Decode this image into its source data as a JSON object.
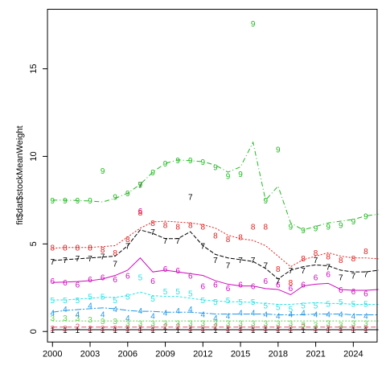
{
  "chart_data": {
    "type": "line",
    "title": "",
    "xlabel": "",
    "ylabel": "fit$dat$stockMeanWeight",
    "xlim": [
      1999.6,
      2025.9
    ],
    "ylim": [
      -0.6,
      18.4
    ],
    "x_ticks": [
      2000,
      2003,
      2006,
      2009,
      2012,
      2015,
      2018,
      2021,
      2024
    ],
    "y_ticks": [
      0,
      5,
      10,
      15
    ],
    "grid": false,
    "legend": "none",
    "x_fit": [
      2000,
      2001,
      2002,
      2003,
      2004,
      2005,
      2006,
      2007,
      2008,
      2009,
      2010,
      2011,
      2012,
      2013,
      2014,
      2015,
      2016,
      2017,
      2018,
      2019,
      2020,
      2021,
      2022,
      2023,
      2024,
      2025,
      2026
    ],
    "x_obs": [
      2000,
      2001,
      2002,
      2003,
      2004,
      2005,
      2006,
      2007,
      2008,
      2009,
      2010,
      2011,
      2012,
      2013,
      2014,
      2015,
      2016,
      2017,
      2018,
      2019,
      2020,
      2021,
      2022,
      2023,
      2024,
      2025
    ],
    "series": [
      {
        "label": "1",
        "color": "#000000",
        "dash": "",
        "fitted": [
          0.1,
          0.1,
          0.1,
          0.1,
          0.1,
          0.1,
          0.1,
          0.1,
          0.1,
          0.1,
          0.1,
          0.1,
          0.1,
          0.1,
          0.1,
          0.1,
          0.1,
          0.1,
          0.1,
          0.1,
          0.1,
          0.1,
          0.1,
          0.1,
          0.1,
          0.1,
          0.1
        ],
        "observed": [
          0.1,
          0.1,
          0.1,
          0.1,
          0.1,
          0.1,
          0.1,
          0.1,
          0.1,
          0.1,
          0.1,
          0.1,
          0.1,
          0.1,
          0.1,
          0.1,
          0.1,
          0.1,
          0.1,
          0.1,
          0.1,
          0.1,
          0.1,
          0.1,
          0.1,
          0.1
        ]
      },
      {
        "label": "2",
        "color": "#DF536B",
        "dash": "6,3",
        "fitted": [
          0.25,
          0.25,
          0.25,
          0.25,
          0.25,
          0.25,
          0.25,
          0.25,
          0.25,
          0.25,
          0.25,
          0.25,
          0.25,
          0.25,
          0.25,
          0.25,
          0.25,
          0.25,
          0.25,
          0.25,
          0.25,
          0.25,
          0.25,
          0.25,
          0.25,
          0.25,
          0.25
        ],
        "observed": [
          0.2,
          0.2,
          0.3,
          0.2,
          0.2,
          0.2,
          0.2,
          0.2,
          0.2,
          0.3,
          0.3,
          0.2,
          0.2,
          0.3,
          0.2,
          0.2,
          0.2,
          0.2,
          0.2,
          0.2,
          0.3,
          0.2,
          0.2,
          0.2,
          0.2,
          0.2
        ]
      },
      {
        "label": "3",
        "color": "#61D04F",
        "dash": "2,2",
        "fitted": [
          0.6,
          0.6,
          0.6,
          0.6,
          0.6,
          0.6,
          0.6,
          0.6,
          0.6,
          0.6,
          0.6,
          0.6,
          0.6,
          0.6,
          0.6,
          0.6,
          0.6,
          0.6,
          0.6,
          0.6,
          0.6,
          0.6,
          0.6,
          0.6,
          0.6,
          0.6,
          0.6
        ],
        "observed": [
          0.8,
          0.8,
          0.8,
          0.7,
          0.6,
          0.6,
          0.5,
          0.5,
          0.5,
          0.5,
          0.5,
          0.5,
          0.5,
          0.5,
          0.5,
          0.5,
          0.5,
          0.5,
          0.5,
          0.5,
          0.4,
          0.4,
          0.5,
          0.4,
          0.5,
          0.5
        ]
      },
      {
        "label": "4",
        "color": "#2297E6",
        "dash": "8,2,2,2",
        "fitted": [
          1.1,
          1.2,
          1.25,
          1.3,
          1.35,
          1.3,
          1.2,
          1.15,
          1.15,
          1.1,
          1.1,
          1.1,
          1.05,
          1.0,
          1.0,
          1.0,
          1.0,
          1.0,
          0.95,
          0.95,
          0.95,
          1.0,
          1.0,
          1.0,
          0.95,
          0.95,
          0.95
        ],
        "observed": [
          1.1,
          1.3,
          1.0,
          1.5,
          1.0,
          1.3,
          0.8,
          1.2,
          0.9,
          1.1,
          1.2,
          1.3,
          1.0,
          0.8,
          0.9,
          1.1,
          1.1,
          1.0,
          0.9,
          1.0,
          1.1,
          1.0,
          1.0,
          1.0,
          0.9,
          0.9
        ]
      },
      {
        "label": "5",
        "color": "#28E2E5",
        "dash": "3,2",
        "fitted": [
          1.8,
          1.8,
          1.85,
          1.9,
          1.95,
          1.95,
          2.05,
          2.25,
          2.05,
          2.0,
          2.0,
          1.9,
          1.8,
          1.75,
          1.7,
          1.7,
          1.65,
          1.6,
          1.55,
          1.55,
          1.6,
          1.65,
          1.6,
          1.6,
          1.55,
          1.55,
          1.55
        ],
        "observed": [
          1.8,
          1.8,
          1.8,
          2.0,
          2.0,
          1.8,
          2.0,
          3.1,
          1.9,
          2.3,
          2.3,
          2.2,
          1.8,
          1.7,
          1.8,
          1.7,
          1.7,
          1.5,
          1.4,
          1.3,
          1.5,
          1.5,
          1.6,
          1.7,
          1.6,
          1.6
        ]
      },
      {
        "label": "6",
        "color": "#CD0BBC",
        "dash": "",
        "fitted": [
          2.8,
          2.82,
          2.85,
          2.9,
          3.0,
          3.2,
          3.5,
          4.2,
          3.4,
          3.5,
          3.4,
          3.3,
          3.2,
          2.9,
          2.7,
          2.6,
          2.6,
          2.45,
          2.4,
          2.1,
          2.6,
          2.7,
          2.75,
          2.4,
          2.35,
          2.35,
          2.4
        ],
        "observed": [
          2.9,
          2.8,
          2.7,
          3.0,
          3.1,
          3.0,
          3.2,
          6.9,
          2.9,
          3.6,
          3.5,
          3.2,
          2.6,
          2.7,
          2.5,
          2.7,
          2.6,
          2.9,
          2.7,
          2.5,
          2.7,
          3.1,
          3.3,
          2.4,
          2.3,
          2.2
        ]
      },
      {
        "label": "7",
        "color": "#000000",
        "dash": "5,2",
        "fitted": [
          4.05,
          4.1,
          4.15,
          4.2,
          4.25,
          4.3,
          4.9,
          5.8,
          5.6,
          5.3,
          5.3,
          5.7,
          4.9,
          4.4,
          4.2,
          4.1,
          4.0,
          3.6,
          3.0,
          3.5,
          3.7,
          3.8,
          3.75,
          3.5,
          3.4,
          3.4,
          3.5
        ],
        "observed": [
          4.0,
          4.1,
          4.2,
          4.2,
          4.3,
          3.9,
          4.9,
          8.4,
          5.7,
          5.2,
          5.2,
          7.7,
          4.9,
          4.1,
          3.8,
          4.1,
          4.1,
          3.8,
          2.9,
          3.5,
          3.5,
          4.1,
          3.7,
          3.1,
          3.2,
          3.3
        ]
      },
      {
        "label": "8",
        "color": "#F5C710",
        "dash": "2,2",
        "fitted": [
          4.75,
          4.8,
          4.8,
          4.8,
          4.85,
          4.9,
          5.4,
          5.9,
          6.25,
          6.3,
          6.25,
          6.2,
          6.1,
          5.9,
          5.5,
          5.3,
          5.2,
          4.9,
          4.3,
          3.7,
          4.1,
          4.3,
          4.5,
          4.3,
          4.2,
          4.2,
          4.15
        ],
        "observed": [
          4.8,
          4.8,
          4.8,
          4.8,
          4.7,
          4.5,
          5.3,
          6.8,
          6.2,
          6.1,
          6.0,
          6.1,
          6.0,
          5.5,
          5.3,
          5.4,
          6.0,
          6.0,
          3.6,
          2.8,
          4.2,
          4.5,
          4.3,
          4.1,
          4.2,
          4.6
        ],
        "text_color": "#E02020",
        "line_color": "#E02020"
      },
      {
        "label": "9",
        "color": "#1FB81F",
        "dash": "6,3,1,3",
        "fitted": [
          7.5,
          7.5,
          7.48,
          7.45,
          7.4,
          7.6,
          7.9,
          8.4,
          9.1,
          9.6,
          9.8,
          9.75,
          9.7,
          9.5,
          9.1,
          9.4,
          10.8,
          7.5,
          8.3,
          6.2,
          5.8,
          6.0,
          6.2,
          6.3,
          6.4,
          6.6,
          6.7
        ],
        "observed": [
          7.5,
          7.5,
          7.5,
          7.5,
          9.2,
          7.7,
          7.9,
          8.4,
          9.1,
          9.6,
          9.8,
          9.8,
          9.7,
          9.4,
          8.9,
          9.0,
          17.6,
          7.5,
          10.4,
          6.0,
          5.8,
          5.9,
          6.0,
          6.1,
          6.3,
          6.6
        ]
      }
    ]
  }
}
